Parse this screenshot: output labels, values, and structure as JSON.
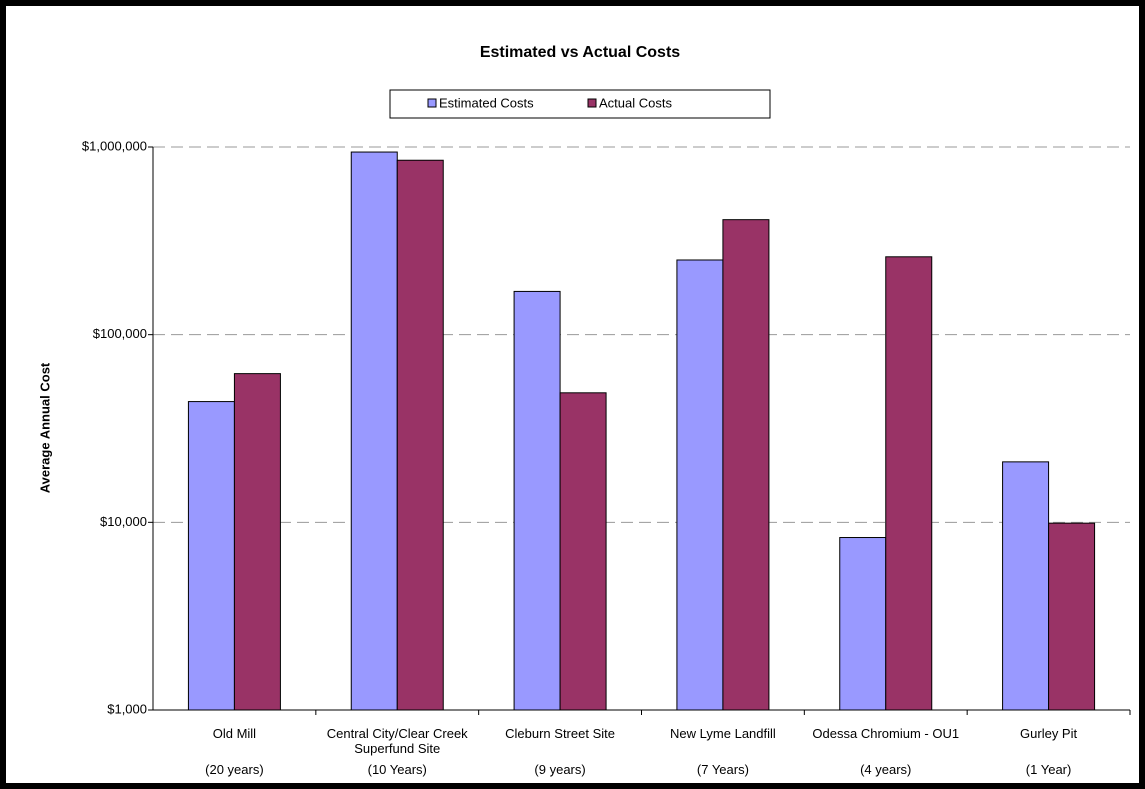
{
  "chart_data": {
    "type": "bar",
    "title": "Estimated vs Actual Costs",
    "y_label": "Average Annual Cost",
    "categories": [
      [
        "Old Mill",
        "(20 years)"
      ],
      [
        "Central City/Clear Creek Superfund Site",
        "(10 Years)"
      ],
      [
        "Cleburn Street Site",
        "(9 years)"
      ],
      [
        "New Lyme Landfill",
        "(7 Years)"
      ],
      [
        "Odessa Chromium - OU1",
        "(4 years)"
      ],
      [
        "Gurley Pit",
        "(1 Year)"
      ]
    ],
    "series": [
      {
        "name": "Estimated Costs",
        "color": "#9999ff",
        "values": [
          44000,
          940000,
          170000,
          250000,
          8300,
          21000
        ]
      },
      {
        "name": "Actual Costs",
        "color": "#993366",
        "values": [
          62000,
          850000,
          49000,
          410000,
          260000,
          9900
        ]
      }
    ],
    "log_scale": true,
    "ylim": [
      1000,
      1000000
    ],
    "yticks": [
      {
        "value": 1000,
        "label": "$1,000"
      },
      {
        "value": 10000,
        "label": "$10,000"
      },
      {
        "value": 100000,
        "label": "$100,000"
      },
      {
        "value": 1000000,
        "label": "$1,000,000"
      }
    ],
    "grid": true,
    "legend": "top"
  }
}
